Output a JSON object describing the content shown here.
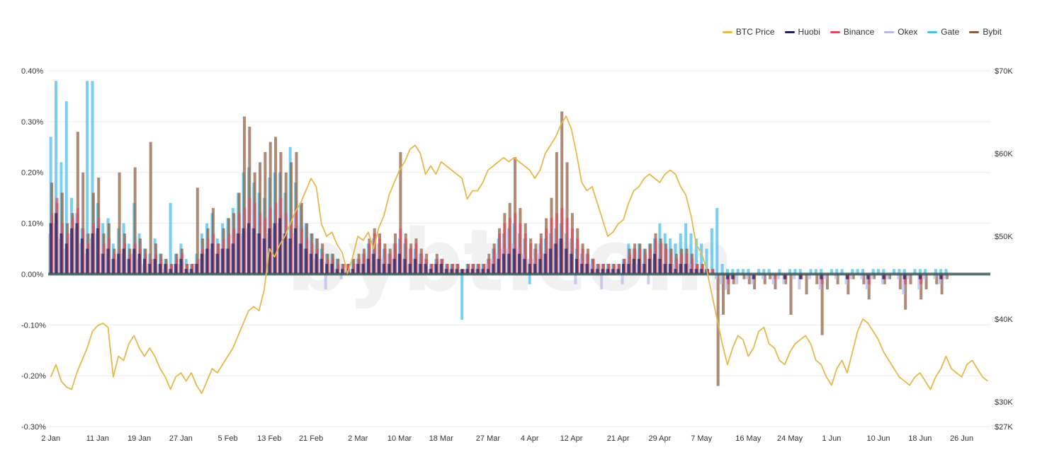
{
  "chart_data": {
    "type": "bar",
    "title": "",
    "watermark": "bybt.com",
    "legend_position": "top-right",
    "grid": true,
    "y_left": {
      "ylim": [
        -0.3,
        0.4
      ],
      "ticks": [
        "0.40%",
        "0.30%",
        "0.20%",
        "0.10%",
        "0.00%",
        "-0.10%",
        "-0.20%",
        "-0.30%"
      ],
      "tick_values": [
        0.4,
        0.3,
        0.2,
        0.1,
        0.0,
        -0.1,
        -0.2,
        -0.3
      ]
    },
    "y_right": {
      "ylim": [
        27000,
        70000
      ],
      "ticks": [
        "$70K",
        "$60K",
        "$50K",
        "$40K",
        "$30K",
        "$27K"
      ],
      "tick_values": [
        70000,
        60000,
        50000,
        40000,
        30000,
        27000
      ]
    },
    "x_ticks": [
      "2 Jan",
      "11 Jan",
      "19 Jan",
      "27 Jan",
      "5 Feb",
      "13 Feb",
      "21 Feb",
      "2 Mar",
      "10 Mar",
      "18 Mar",
      "27 Mar",
      "4 Apr",
      "12 Apr",
      "21 Apr",
      "29 Apr",
      "7 May",
      "16 May",
      "24 May",
      "1 Jun",
      "10 Jun",
      "18 Jun",
      "26 Jun"
    ],
    "x_tick_index": [
      0,
      9,
      17,
      25,
      34,
      42,
      50,
      59,
      67,
      75,
      84,
      92,
      100,
      109,
      117,
      125,
      134,
      142,
      150,
      159,
      167,
      175
    ],
    "series": [
      {
        "name": "BTC Price",
        "color": "#e6b84f",
        "kind": "line",
        "values": [
          33000,
          34500,
          32500,
          31800,
          31500,
          33500,
          35000,
          36500,
          38500,
          39200,
          39500,
          39000,
          33000,
          35500,
          35000,
          37000,
          38000,
          36500,
          35500,
          36500,
          35500,
          34000,
          33000,
          31500,
          33000,
          33500,
          32500,
          33500,
          32000,
          31000,
          32500,
          34000,
          33500,
          34500,
          35500,
          36500,
          38000,
          39500,
          41000,
          41500,
          41000,
          43500,
          48500,
          47500,
          49000,
          50000,
          51500,
          53000,
          54000,
          55500,
          57000,
          56000,
          51500,
          50000,
          50500,
          49000,
          48000,
          45500,
          47500,
          50000,
          49500,
          50500,
          48500,
          51000,
          52500,
          55000,
          56500,
          58000,
          59000,
          60500,
          61000,
          60000,
          57500,
          58500,
          57500,
          59000,
          58500,
          58000,
          57500,
          57000,
          54500,
          55500,
          55500,
          56500,
          58000,
          58500,
          59000,
          59500,
          59000,
          59500,
          59000,
          58500,
          58000,
          57000,
          58000,
          60000,
          61000,
          62000,
          63500,
          64500,
          63000,
          60000,
          56500,
          55500,
          56000,
          54000,
          52000,
          50000,
          50500,
          51500,
          52000,
          54000,
          55500,
          56000,
          57000,
          57500,
          57000,
          56500,
          57500,
          58000,
          57500,
          56000,
          55000,
          52500,
          49000,
          48000,
          46000,
          43000,
          40000,
          37000,
          34500,
          36500,
          38000,
          37500,
          35500,
          36500,
          38500,
          39000,
          37000,
          36500,
          35000,
          34500,
          36000,
          37000,
          37500,
          38000,
          37000,
          35000,
          34500,
          33000,
          32000,
          34000,
          35000,
          33500,
          36000,
          38500,
          40000,
          39500,
          38500,
          37500,
          36000,
          35000,
          34000,
          33000,
          32500,
          32000,
          33000,
          33500,
          32500,
          31500,
          33000,
          34000,
          35500,
          34000,
          33500,
          33000,
          34500,
          35000,
          34000,
          33000,
          32500
        ]
      },
      {
        "name": "Huobi",
        "color": "#1b1f5e",
        "kind": "bar",
        "values": [
          0.1,
          0.12,
          0.08,
          0.06,
          0.09,
          0.1,
          0.07,
          0.05,
          0.08,
          0.09,
          0.04,
          0.05,
          0.03,
          0.04,
          0.05,
          0.03,
          0.05,
          0.04,
          0.03,
          0.02,
          0.03,
          0.02,
          0.02,
          0.01,
          0.02,
          0.03,
          0.01,
          0.01,
          0.02,
          0.04,
          0.05,
          0.06,
          0.04,
          0.05,
          0.05,
          0.06,
          0.08,
          0.09,
          0.1,
          0.09,
          0.08,
          0.07,
          0.09,
          0.1,
          0.11,
          0.08,
          0.07,
          0.09,
          0.06,
          0.05,
          0.04,
          0.04,
          0.03,
          0.02,
          0.02,
          0.01,
          0.01,
          0.01,
          0.01,
          0.02,
          0.02,
          0.03,
          0.04,
          0.03,
          0.02,
          0.02,
          0.03,
          0.04,
          0.03,
          0.02,
          0.03,
          0.02,
          0.02,
          0.01,
          0.02,
          0.02,
          0.01,
          0.01,
          0.01,
          0.01,
          0.01,
          0.01,
          0.01,
          0.01,
          0.01,
          0.02,
          0.03,
          0.04,
          0.04,
          0.05,
          0.04,
          0.03,
          0.02,
          0.02,
          0.03,
          0.04,
          0.05,
          0.06,
          0.07,
          0.05,
          0.04,
          0.03,
          0.02,
          0.02,
          0.01,
          0.01,
          0.01,
          0.01,
          0.01,
          0.01,
          0.02,
          0.02,
          0.03,
          0.03,
          0.02,
          0.03,
          0.04,
          0.03,
          0.02,
          0.02,
          0.01,
          0.02,
          0.02,
          0.01,
          0.01,
          0.01,
          0.01,
          0.0,
          0.0,
          0.0,
          -0.01,
          -0.01,
          0.0,
          0.0,
          0.0,
          -0.01,
          0.0,
          0.0,
          0.0,
          0.0,
          0.0,
          -0.01,
          0.0,
          0.0,
          -0.01,
          0.0,
          0.0,
          0.0,
          -0.01,
          0.0,
          0.0,
          0.0,
          0.0,
          -0.01,
          0.0,
          0.0,
          0.0,
          -0.01,
          0.0,
          0.0,
          -0.01,
          0.0,
          0.0,
          0.0,
          -0.01,
          0.0,
          0.0,
          -0.01,
          0.0,
          0.0,
          0.0,
          -0.01,
          0.0,
          0.0
        ]
      },
      {
        "name": "Binance",
        "color": "#e04a5f",
        "kind": "bar",
        "values": [
          0.12,
          0.15,
          0.1,
          0.08,
          0.11,
          0.13,
          0.09,
          0.06,
          0.1,
          0.11,
          0.06,
          0.07,
          0.04,
          0.05,
          0.06,
          0.04,
          0.06,
          0.05,
          0.04,
          0.03,
          0.04,
          0.03,
          0.02,
          0.02,
          0.03,
          0.04,
          0.02,
          0.02,
          0.03,
          0.05,
          0.07,
          0.08,
          0.06,
          0.07,
          0.08,
          0.09,
          0.12,
          0.13,
          0.15,
          0.14,
          0.12,
          0.11,
          0.13,
          0.14,
          0.15,
          0.12,
          0.11,
          0.13,
          0.09,
          0.07,
          0.06,
          0.05,
          0.04,
          0.03,
          0.03,
          0.02,
          0.02,
          0.02,
          0.02,
          0.03,
          0.04,
          0.06,
          0.08,
          0.07,
          0.05,
          0.04,
          0.06,
          0.09,
          0.07,
          0.05,
          0.06,
          0.04,
          0.03,
          0.02,
          0.03,
          0.03,
          0.02,
          0.02,
          0.02,
          0.01,
          0.02,
          0.02,
          0.02,
          0.02,
          0.03,
          0.05,
          0.08,
          0.1,
          0.11,
          0.12,
          0.1,
          0.08,
          0.06,
          0.05,
          0.07,
          0.09,
          0.11,
          0.12,
          0.13,
          0.11,
          0.09,
          0.07,
          0.05,
          0.04,
          0.03,
          0.02,
          0.02,
          0.02,
          0.02,
          0.02,
          0.03,
          0.04,
          0.05,
          0.05,
          0.04,
          0.05,
          0.07,
          0.06,
          0.05,
          0.04,
          0.03,
          0.04,
          0.04,
          0.03,
          0.02,
          0.02,
          0.01,
          0.01,
          0.0,
          0.0,
          -0.02,
          -0.01,
          0.0,
          0.0,
          0.0,
          -0.01,
          0.0,
          0.0,
          0.0,
          -0.01,
          0.0,
          -0.01,
          0.0,
          0.0,
          -0.01,
          0.0,
          0.0,
          0.0,
          -0.02,
          0.0,
          0.0,
          0.0,
          0.0,
          -0.01,
          0.0,
          0.0,
          0.0,
          -0.02,
          0.0,
          0.0,
          -0.01,
          0.0,
          0.0,
          0.0,
          -0.02,
          0.0,
          0.0,
          -0.02,
          0.0,
          0.0,
          0.0,
          -0.01,
          0.0,
          0.0
        ]
      },
      {
        "name": "Okex",
        "color": "#b9b6e8",
        "kind": "bar",
        "values": [
          0.08,
          0.1,
          0.07,
          0.05,
          0.08,
          0.09,
          0.06,
          0.04,
          0.07,
          0.08,
          0.04,
          0.05,
          0.03,
          0.03,
          0.04,
          0.03,
          0.04,
          0.03,
          0.02,
          0.02,
          0.03,
          0.02,
          0.01,
          0.01,
          0.02,
          0.02,
          0.01,
          0.01,
          0.02,
          0.03,
          0.04,
          0.05,
          0.04,
          0.05,
          0.05,
          0.06,
          0.08,
          0.08,
          0.09,
          0.09,
          0.08,
          0.07,
          0.08,
          0.09,
          0.1,
          0.08,
          0.07,
          0.08,
          0.06,
          0.05,
          0.04,
          0.03,
          0.03,
          -0.03,
          0.02,
          0.01,
          -0.01,
          0.01,
          0.01,
          0.02,
          0.02,
          0.03,
          0.04,
          0.03,
          0.03,
          0.02,
          0.03,
          0.04,
          0.03,
          0.02,
          0.03,
          0.02,
          0.02,
          0.01,
          0.02,
          0.02,
          0.01,
          0.01,
          0.01,
          0.01,
          0.01,
          0.01,
          0.01,
          0.01,
          0.02,
          0.03,
          0.04,
          0.05,
          0.05,
          0.06,
          0.05,
          0.04,
          0.03,
          0.03,
          0.04,
          0.04,
          0.05,
          0.06,
          0.07,
          0.05,
          0.04,
          -0.02,
          0.03,
          0.02,
          0.02,
          0.01,
          -0.03,
          0.01,
          0.01,
          0.01,
          -0.02,
          0.02,
          0.02,
          0.02,
          0.02,
          -0.02,
          0.03,
          0.03,
          0.02,
          0.02,
          0.02,
          0.02,
          0.02,
          0.02,
          0.01,
          0.01,
          0.01,
          0.0,
          -0.01,
          -0.02,
          -0.03,
          -0.01,
          -0.02,
          0.0,
          -0.01,
          -0.02,
          0.0,
          -0.01,
          0.0,
          -0.02,
          -0.01,
          -0.02,
          0.0,
          -0.01,
          -0.03,
          0.0,
          -0.01,
          0.0,
          -0.03,
          -0.01,
          0.0,
          -0.01,
          0.0,
          -0.02,
          -0.01,
          0.0,
          -0.01,
          -0.03,
          -0.01,
          0.0,
          -0.02,
          -0.01,
          0.0,
          -0.01,
          -0.04,
          -0.01,
          0.0,
          -0.03,
          -0.01,
          0.0,
          -0.01,
          -0.02,
          -0.01,
          0.0
        ]
      },
      {
        "name": "Gate",
        "color": "#4ec0e8",
        "kind": "bar",
        "values": [
          0.27,
          0.38,
          0.22,
          0.34,
          0.15,
          0.12,
          0.09,
          0.38,
          0.38,
          0.14,
          0.1,
          0.11,
          0.06,
          0.09,
          0.1,
          0.06,
          0.14,
          0.08,
          0.05,
          0.04,
          0.07,
          0.04,
          0.03,
          0.14,
          0.04,
          0.06,
          0.03,
          0.02,
          0.04,
          0.08,
          0.1,
          0.12,
          0.07,
          0.1,
          0.11,
          0.13,
          0.16,
          0.2,
          0.21,
          0.18,
          0.16,
          0.15,
          0.19,
          0.2,
          0.2,
          0.16,
          0.25,
          0.18,
          0.14,
          0.1,
          0.08,
          0.07,
          0.05,
          0.04,
          0.04,
          0.03,
          0.02,
          0.02,
          0.03,
          0.03,
          0.04,
          0.06,
          0.07,
          0.06,
          0.05,
          0.04,
          0.06,
          0.07,
          0.06,
          0.05,
          0.05,
          0.04,
          0.03,
          0.02,
          0.03,
          0.03,
          0.02,
          0.02,
          0.02,
          -0.09,
          0.02,
          0.02,
          0.02,
          0.02,
          0.03,
          0.05,
          0.07,
          0.08,
          0.09,
          0.1,
          0.08,
          0.07,
          -0.02,
          0.05,
          0.06,
          0.07,
          0.08,
          0.09,
          0.1,
          0.08,
          0.07,
          0.05,
          0.04,
          0.04,
          0.03,
          0.02,
          0.02,
          0.02,
          0.02,
          0.02,
          0.03,
          0.06,
          0.05,
          0.06,
          0.05,
          0.06,
          0.07,
          0.1,
          0.08,
          0.07,
          0.06,
          0.08,
          0.1,
          0.08,
          0.07,
          0.06,
          0.05,
          0.09,
          0.13,
          0.02,
          0.01,
          0.01,
          0.01,
          0.01,
          0.01,
          0.0,
          0.01,
          0.01,
          0.01,
          0.0,
          0.01,
          0.0,
          0.01,
          0.01,
          0.01,
          0.0,
          0.01,
          0.01,
          0.01,
          0.0,
          0.01,
          0.01,
          0.01,
          0.0,
          0.01,
          0.01,
          0.01,
          0.0,
          0.01,
          0.01,
          0.01,
          0.0,
          0.01,
          0.01,
          0.01,
          0.0,
          0.01,
          0.01,
          0.01,
          0.0,
          0.01,
          0.01,
          0.01,
          0.0
        ]
      },
      {
        "name": "Bybit",
        "color": "#8b5a3c",
        "kind": "bar",
        "values": [
          0.18,
          0.14,
          0.16,
          0.1,
          0.12,
          0.28,
          0.2,
          0.08,
          0.16,
          0.19,
          0.08,
          0.1,
          0.05,
          0.2,
          0.08,
          0.05,
          0.21,
          0.07,
          0.05,
          0.26,
          0.06,
          0.04,
          0.03,
          0.02,
          0.04,
          0.05,
          0.02,
          0.02,
          0.17,
          0.07,
          0.09,
          0.13,
          0.06,
          0.09,
          0.11,
          0.12,
          0.16,
          0.31,
          0.29,
          0.2,
          0.22,
          0.24,
          0.26,
          0.27,
          0.24,
          0.2,
          0.22,
          0.24,
          0.14,
          0.1,
          0.08,
          0.07,
          0.06,
          0.04,
          0.04,
          0.03,
          0.02,
          0.02,
          0.03,
          0.04,
          0.05,
          0.07,
          0.09,
          0.08,
          0.06,
          0.05,
          0.08,
          0.24,
          0.08,
          0.06,
          0.07,
          0.05,
          0.04,
          0.02,
          0.04,
          0.03,
          0.02,
          0.02,
          0.02,
          0.01,
          0.02,
          0.02,
          0.02,
          0.02,
          0.04,
          0.06,
          0.09,
          0.12,
          0.14,
          0.23,
          0.13,
          0.1,
          0.07,
          0.06,
          0.08,
          0.11,
          0.15,
          0.24,
          0.32,
          0.22,
          0.12,
          0.09,
          0.06,
          0.05,
          0.03,
          0.02,
          0.02,
          0.02,
          0.02,
          0.02,
          0.03,
          0.05,
          0.06,
          0.06,
          0.05,
          0.06,
          0.08,
          0.07,
          0.06,
          0.05,
          0.04,
          0.05,
          0.05,
          0.04,
          0.02,
          0.02,
          0.01,
          0.01,
          -0.22,
          -0.08,
          -0.04,
          -0.02,
          0.0,
          -0.01,
          -0.02,
          -0.03,
          0.0,
          -0.02,
          -0.01,
          -0.03,
          0.0,
          -0.02,
          -0.08,
          0.0,
          -0.01,
          -0.04,
          0.0,
          -0.02,
          -0.12,
          -0.03,
          0.0,
          -0.02,
          0.0,
          -0.04,
          -0.01,
          0.0,
          -0.02,
          -0.05,
          -0.01,
          0.0,
          -0.02,
          -0.01,
          0.0,
          -0.03,
          -0.07,
          -0.02,
          0.0,
          -0.05,
          -0.03,
          0.0,
          -0.02,
          -0.04,
          -0.01,
          0.0
        ]
      }
    ]
  }
}
